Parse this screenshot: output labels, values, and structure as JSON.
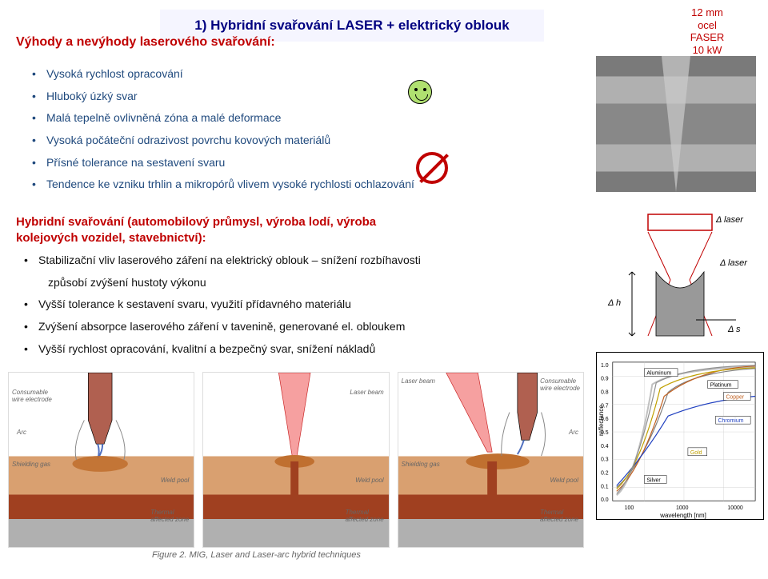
{
  "title": "1) Hybridní svařování LASER + elektrický oblouk",
  "subtitle": "Výhody a nevýhody laserového  svařování:",
  "callout": {
    "l1": "12 mm",
    "l2": "ocel",
    "l3": "FASER",
    "l4": "10 kW"
  },
  "advantages": [
    "Vysoká rychlost opracování",
    "Hluboký úzký svar",
    "Malá tepelně ovlivněná zóna a malé deformace",
    "Vysoká počáteční odrazivost povrchu kovových materiálů",
    "Přísné tolerance na sestavení svaru",
    "Tendence ke vzniku trhlin a mikropórů vlivem vysoké rychlosti   ochlazování"
  ],
  "hybrid_heading": "Hybridní svařování (automobilový průmysl, výroba lodí, výroba kolejových vozidel, stavebnictví):",
  "hybrid_bullets": [
    "Stabilizační vliv laserového záření na elektrický oblouk – snížení rozbíhavosti",
    "způsobí zvýšení hustoty výkonu",
    "Vyšší tolerance k sestavení svaru, využití přídavného materiálu",
    "Zvýšení absorpce laserového záření v tavenině, generované el. obloukem",
    "Vyšší rychlost opracování, kvalitní a bezpečný svar, snížení nákladů"
  ],
  "diagram_labels": {
    "dlaser": "Δ laser",
    "dlaser2": "Δ laser",
    "dh": "Δ h",
    "ds": "Δ s"
  },
  "reflectance": {
    "ylabel": "reflectance",
    "xlabel": "wavelength [nm]",
    "metals": [
      "Aluminum",
      "Platinum",
      "Copper",
      "Chromium",
      "Gold",
      "Silver"
    ],
    "colors": [
      "#c0c0c0",
      "#808080",
      "#c06020",
      "#2040c0",
      "#c0a000",
      "#909090"
    ]
  },
  "mig_labels": {
    "consumable": "Consumable\nwire electrode",
    "arc": "Arc",
    "shielding": "Shielding gas",
    "weldpool": "Weld pool",
    "thermal": "Thermal\naffected zone",
    "laserbeam": "Laser beam"
  },
  "fig_caption": "Figure 2. MIG, Laser and Laser-arc hybrid techniques"
}
